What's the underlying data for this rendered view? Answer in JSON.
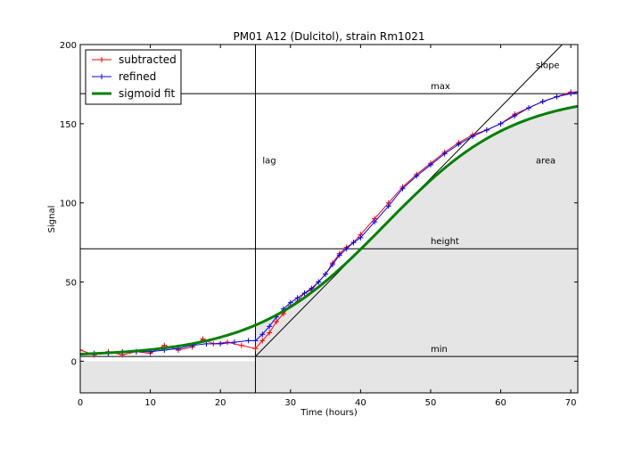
{
  "chart_data": {
    "type": "line",
    "title": "PM01 A12 (Dulcitol), strain Rm1021",
    "xlabel": "Time (hours)",
    "ylabel": "Signal",
    "xlim": [
      0,
      71
    ],
    "ylim": [
      -20,
      200
    ],
    "xticks": [
      "0",
      "10",
      "20",
      "30",
      "40",
      "50",
      "60",
      "70"
    ],
    "yticks": [
      "0",
      "50",
      "100",
      "150",
      "200"
    ],
    "grid": false,
    "legend_position": "top-left",
    "colors": {
      "subtracted": "#ff0000",
      "refined": "#0000ff",
      "sigmoid": "#008000",
      "area_fill": "#e5e5e5",
      "lines": "#000000"
    },
    "sigmoid_params": {
      "min": 3,
      "max": 169,
      "lag": 25,
      "slope": 4.5
    },
    "series": [
      {
        "name": "subtracted",
        "x": [
          0,
          2,
          4,
          6,
          8,
          10,
          12,
          14,
          16,
          17.5,
          19,
          21,
          23,
          25,
          26,
          27,
          28,
          29,
          30,
          31,
          32,
          33,
          34,
          35,
          36,
          37,
          38,
          39,
          40,
          42,
          44,
          46,
          48,
          50,
          52,
          54,
          56,
          58,
          60,
          62,
          64,
          66,
          68,
          70,
          71
        ],
        "y": [
          7,
          4,
          6,
          4,
          6,
          5,
          10,
          7,
          9,
          14,
          11,
          12,
          10,
          8,
          13,
          18,
          25,
          30,
          35,
          38,
          43,
          45,
          50,
          55,
          62,
          68,
          72,
          75,
          80,
          90,
          100,
          110,
          118,
          125,
          132,
          138,
          143,
          146,
          150,
          156,
          160,
          164,
          167,
          170,
          170
        ]
      },
      {
        "name": "refined",
        "x": [
          0,
          2,
          4,
          6,
          8,
          10,
          12,
          14,
          16,
          18,
          20,
          22,
          24,
          25,
          26,
          27,
          28,
          29,
          30,
          31,
          32,
          33,
          34,
          35,
          36,
          37,
          38,
          39,
          40,
          42,
          44,
          46,
          48,
          50,
          52,
          54,
          56,
          58,
          60,
          62,
          64,
          66,
          68,
          70,
          71
        ],
        "y": [
          4,
          5,
          5,
          6,
          6,
          6,
          7,
          8,
          10,
          11,
          11,
          12,
          13,
          13,
          17,
          22,
          28,
          33,
          37,
          40,
          43,
          46,
          50,
          55,
          61,
          67,
          71,
          75,
          78,
          88,
          98,
          109,
          117,
          124,
          131,
          137,
          142,
          146,
          150,
          155,
          160,
          164,
          167,
          169,
          170
        ]
      },
      {
        "name": "sigmoid fit"
      }
    ],
    "annotations": [
      "slope",
      "max",
      "lag",
      "area",
      "height",
      "min"
    ]
  }
}
